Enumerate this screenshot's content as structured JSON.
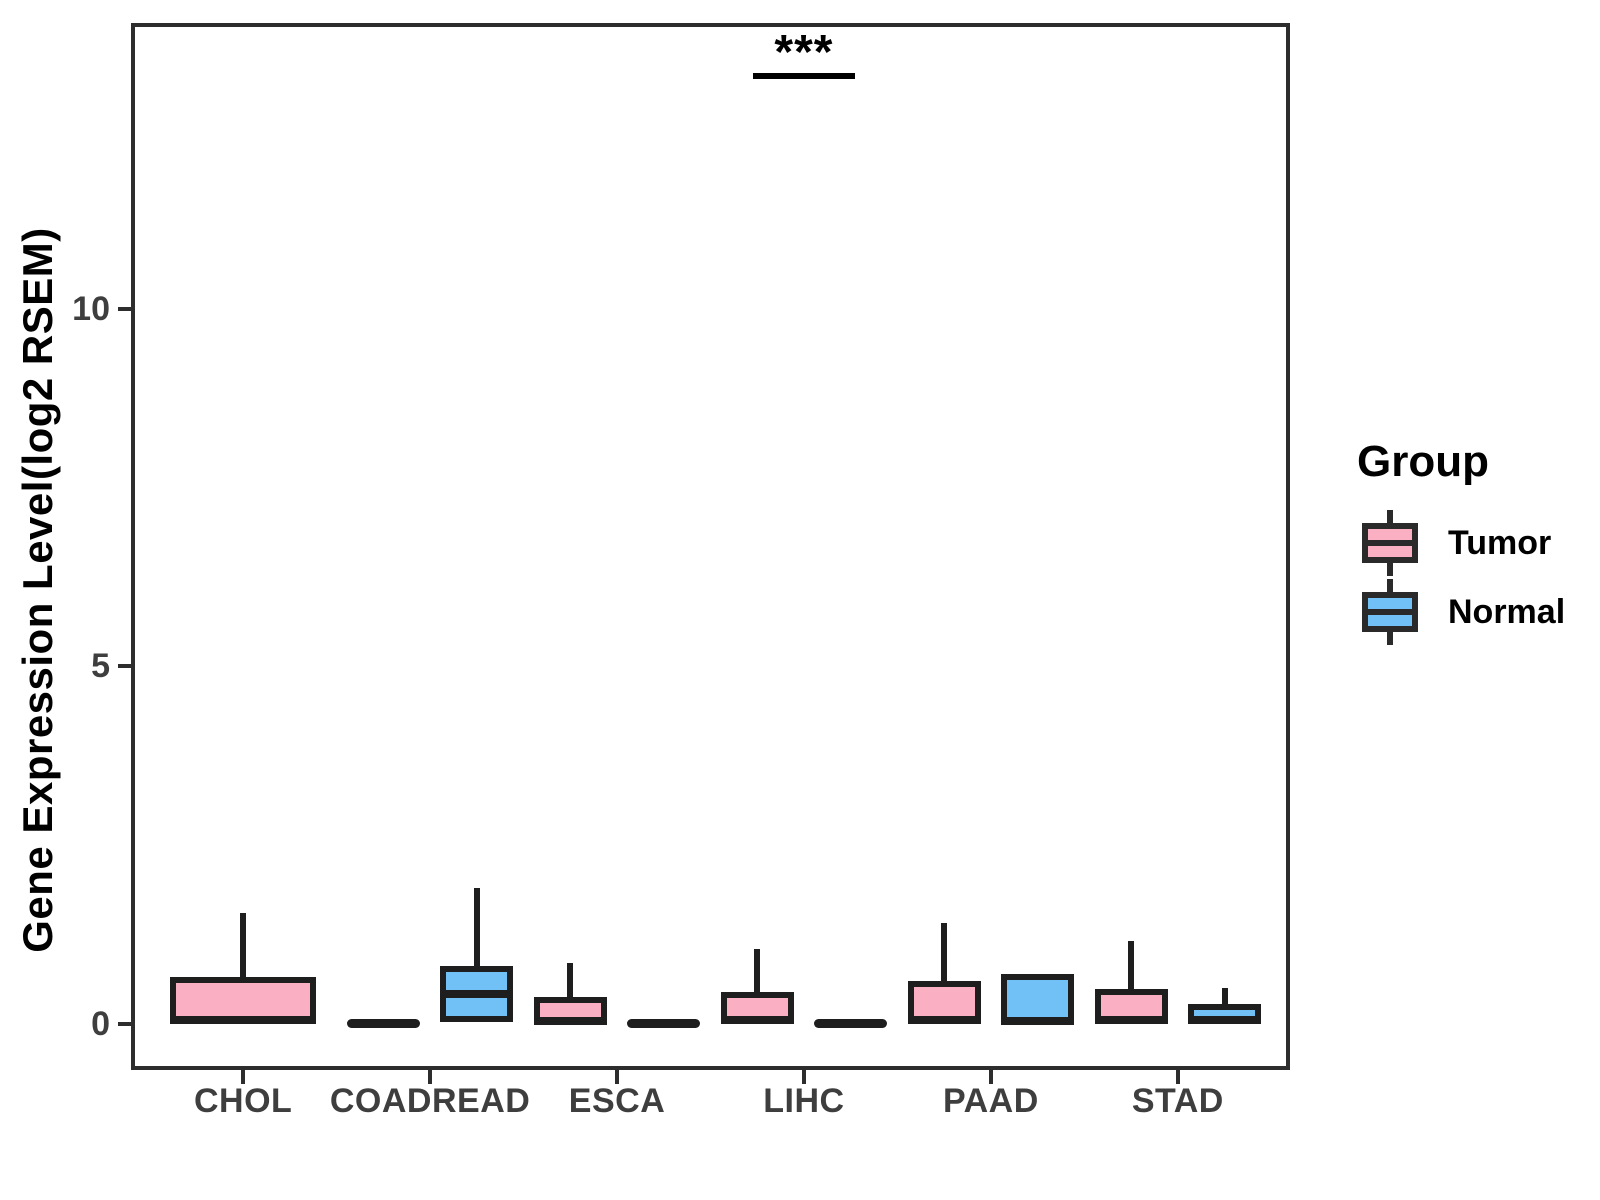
{
  "figure": {
    "y_axis_title": "Gene Expression Level(log2 RSEM)",
    "significance_label": "***",
    "legend": {
      "title": "Group",
      "items": [
        {
          "label": "Tumor",
          "color": "#FBAFC2"
        },
        {
          "label": "Normal",
          "color": "#71C1F7"
        }
      ]
    }
  },
  "chart_data": {
    "type": "boxplot",
    "title": "",
    "xlabel": "",
    "ylabel": "Gene Expression Level(log2 RSEM)",
    "categories": [
      "CHOL",
      "COADREAD",
      "ESCA",
      "LIHC",
      "PAAD",
      "STAD"
    ],
    "groups": [
      "Tumor",
      "Normal"
    ],
    "group_colors": {
      "Tumor": "#FBAFC2",
      "Normal": "#71C1F7"
    },
    "yticks": [
      0,
      5,
      10
    ],
    "ylim": [
      -0.65,
      14.0
    ],
    "grid": false,
    "legend_position": "right",
    "boxes": [
      {
        "category": "CHOL",
        "group": "Tumor",
        "wide": true,
        "min": 0,
        "q1": 0,
        "median": 0.05,
        "q3": 0.65,
        "max": 1.55
      },
      {
        "category": "COADREAD",
        "group": "Tumor",
        "min": 0,
        "q1": 0,
        "median": 0,
        "q3": 0,
        "max": 0
      },
      {
        "category": "COADREAD",
        "group": "Normal",
        "min": 0,
        "q1": 0.02,
        "median": 0.42,
        "q3": 0.81,
        "max": 1.9
      },
      {
        "category": "ESCA",
        "group": "Tumor",
        "min": 0,
        "q1": 0,
        "median": 0.04,
        "q3": 0.37,
        "max": 0.85
      },
      {
        "category": "ESCA",
        "group": "Normal",
        "min": 0,
        "q1": 0,
        "median": 0,
        "q3": 0,
        "max": 0
      },
      {
        "category": "LIHC",
        "group": "Tumor",
        "min": 0,
        "q1": 0,
        "median": 0.05,
        "q3": 0.44,
        "max": 1.05
      },
      {
        "category": "LIHC",
        "group": "Normal",
        "min": 0,
        "q1": 0,
        "median": 0,
        "q3": 0,
        "max": 0
      },
      {
        "category": "PAAD",
        "group": "Tumor",
        "min": 0,
        "q1": 0,
        "median": 0.05,
        "q3": 0.6,
        "max": 1.4
      },
      {
        "category": "PAAD",
        "group": "Normal",
        "min": 0,
        "q1": 0,
        "median": 0.03,
        "q3": 0.7,
        "max": 0.7
      },
      {
        "category": "STAD",
        "group": "Tumor",
        "min": 0,
        "q1": 0,
        "median": 0.05,
        "q3": 0.48,
        "max": 1.15
      },
      {
        "category": "STAD",
        "group": "Normal",
        "min": 0,
        "q1": 0.02,
        "median": 0.05,
        "q3": 0.27,
        "max": 0.5
      }
    ],
    "annotation": {
      "text": "***",
      "category": "LIHC",
      "between_groups": [
        "Tumor",
        "Normal"
      ],
      "y": 13.3
    }
  }
}
